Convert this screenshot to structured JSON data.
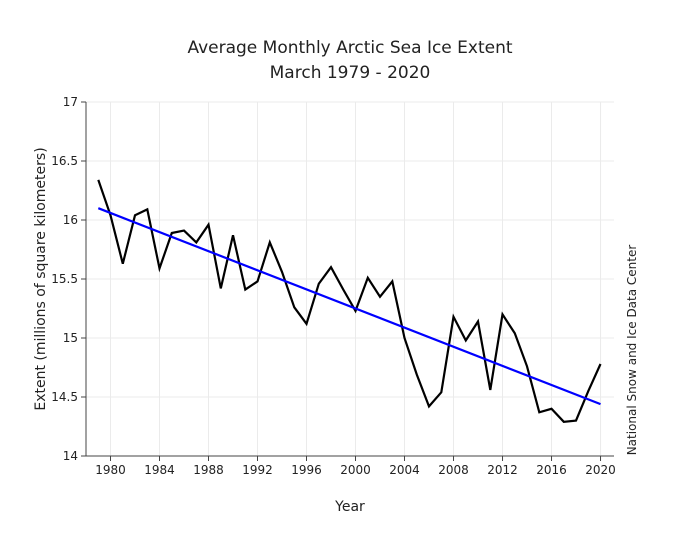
{
  "chart_data": {
    "type": "line",
    "title": "Average Monthly Arctic Sea Ice Extent",
    "subtitle": "March 1979 - 2020",
    "xlabel": "Year",
    "ylabel": "Extent (millions of square kilometers)",
    "side_label": "National Snow and Ice Data Center",
    "xlim": [
      1978,
      2021.1
    ],
    "ylim": [
      14,
      17
    ],
    "grid": true,
    "x_ticks": [
      1980,
      1984,
      1988,
      1992,
      1996,
      2000,
      2004,
      2008,
      2012,
      2016,
      2020
    ],
    "y_ticks": [
      14,
      14.5,
      15,
      15.5,
      16,
      16.5,
      17
    ],
    "y_tick_labels": [
      "14",
      "14.5",
      "15",
      "15.5",
      "16",
      "16.5",
      "17"
    ],
    "x": [
      1979,
      1980,
      1981,
      1982,
      1983,
      1984,
      1985,
      1986,
      1987,
      1988,
      1989,
      1990,
      1991,
      1992,
      1993,
      1994,
      1995,
      1996,
      1997,
      1998,
      1999,
      2000,
      2001,
      2002,
      2003,
      2004,
      2005,
      2006,
      2007,
      2008,
      2009,
      2010,
      2011,
      2012,
      2013,
      2014,
      2015,
      2016,
      2017,
      2018,
      2019,
      2020
    ],
    "series": [
      {
        "color": "#000000",
        "values": [
          16.34,
          16.04,
          15.63,
          16.04,
          16.09,
          15.59,
          15.89,
          15.91,
          15.81,
          15.96,
          15.42,
          15.87,
          15.41,
          15.48,
          15.81,
          15.56,
          15.26,
          15.12,
          15.46,
          15.6,
          15.41,
          15.23,
          15.51,
          15.35,
          15.48,
          15.0,
          14.69,
          14.42,
          14.54,
          15.18,
          14.98,
          15.14,
          14.56,
          15.2,
          15.04,
          14.76,
          14.37,
          14.4,
          14.29,
          14.3,
          14.55,
          14.78
        ]
      },
      {
        "color": "#0000ff",
        "type": "trend",
        "x": [
          1979,
          2020
        ],
        "values": [
          16.1,
          14.44
        ]
      }
    ]
  }
}
